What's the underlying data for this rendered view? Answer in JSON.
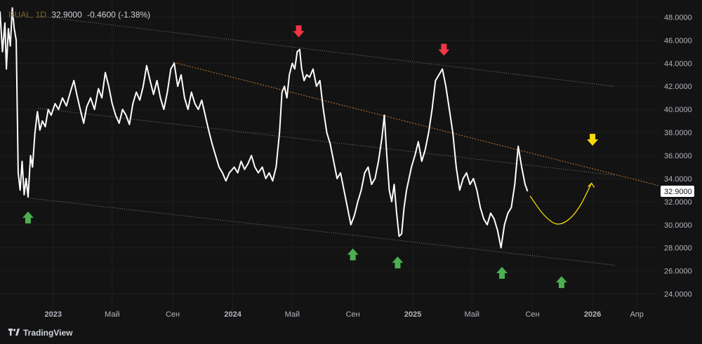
{
  "legend": {
    "symbol": "RUAL, 1D",
    "value": "32.9000",
    "change": "-0.4600 (-1.38%)"
  },
  "brand": {
    "logo_icon": "tradingview-logo-icon",
    "name": "TradingView"
  },
  "colors": {
    "background": "#131313",
    "price": "#ffffff",
    "up_arrow": "#4caf50",
    "down_arrow": "#f23645",
    "forecast": "#f5d90a",
    "trend": "#c97a2a",
    "channel": "#7a7a7a",
    "grid": "#1e1e1e",
    "axis_text": "#b2b5be"
  },
  "chart_data": {
    "type": "line",
    "ylim": [
      23,
      49
    ],
    "xlim": [
      "2022-09-15",
      "2026-05-15"
    ],
    "y_ticks": [
      "24.0000",
      "26.0000",
      "28.0000",
      "30.0000",
      "32.0000",
      "34.0000",
      "36.0000",
      "38.0000",
      "40.0000",
      "42.0000",
      "44.0000",
      "46.0000",
      "48.0000"
    ],
    "x_ticks": [
      {
        "label": "2023",
        "date": "2023-01-01"
      },
      {
        "label": "Май",
        "date": "2023-05-01"
      },
      {
        "label": "Сен",
        "date": "2023-09-01"
      },
      {
        "label": "2024",
        "date": "2024-01-01"
      },
      {
        "label": "Май",
        "date": "2024-05-01"
      },
      {
        "label": "Сен",
        "date": "2024-09-01"
      },
      {
        "label": "2025",
        "date": "2025-01-01"
      },
      {
        "label": "Май",
        "date": "2025-05-01"
      },
      {
        "label": "Сен",
        "date": "2025-09-01"
      },
      {
        "label": "2026",
        "date": "2026-01-01"
      },
      {
        "label": "Апр",
        "date": "2026-04-01"
      }
    ],
    "last_price_label": "32.9000",
    "series": [
      {
        "values": [
          [
            "2022-09-15",
            48.5
          ],
          [
            "2022-09-20",
            45.0
          ],
          [
            "2022-09-25",
            47.5
          ],
          [
            "2022-09-28",
            43.5
          ],
          [
            "2022-10-02",
            47.0
          ],
          [
            "2022-10-06",
            45.5
          ],
          [
            "2022-10-10",
            48.8
          ],
          [
            "2022-10-14",
            47.0
          ],
          [
            "2022-10-18",
            46.0
          ],
          [
            "2022-10-22",
            34.5
          ],
          [
            "2022-10-26",
            33.0
          ],
          [
            "2022-10-30",
            35.5
          ],
          [
            "2022-11-03",
            32.6
          ],
          [
            "2022-11-07",
            34.0
          ],
          [
            "2022-11-11",
            32.4
          ],
          [
            "2022-11-16",
            36.0
          ],
          [
            "2022-11-20",
            35.0
          ],
          [
            "2022-11-25",
            38.0
          ],
          [
            "2022-11-30",
            39.8
          ],
          [
            "2022-12-05",
            38.2
          ],
          [
            "2022-12-10",
            39.0
          ],
          [
            "2022-12-16",
            38.5
          ],
          [
            "2022-12-22",
            40.0
          ],
          [
            "2022-12-28",
            39.5
          ],
          [
            "2023-01-05",
            40.5
          ],
          [
            "2023-01-12",
            40.0
          ],
          [
            "2023-01-20",
            41.0
          ],
          [
            "2023-01-28",
            40.3
          ],
          [
            "2023-02-05",
            41.5
          ],
          [
            "2023-02-12",
            42.5
          ],
          [
            "2023-02-18",
            41.3
          ],
          [
            "2023-02-25",
            40.0
          ],
          [
            "2023-03-04",
            38.8
          ],
          [
            "2023-03-10",
            40.2
          ],
          [
            "2023-03-18",
            41.0
          ],
          [
            "2023-03-26",
            40.0
          ],
          [
            "2023-04-03",
            41.8
          ],
          [
            "2023-04-10",
            41.0
          ],
          [
            "2023-04-17",
            43.2
          ],
          [
            "2023-04-24",
            42.0
          ],
          [
            "2023-05-01",
            40.5
          ],
          [
            "2023-05-08",
            39.5
          ],
          [
            "2023-05-15",
            38.8
          ],
          [
            "2023-05-22",
            40.0
          ],
          [
            "2023-05-29",
            39.5
          ],
          [
            "2023-06-05",
            38.7
          ],
          [
            "2023-06-12",
            40.5
          ],
          [
            "2023-06-19",
            41.5
          ],
          [
            "2023-06-26",
            40.8
          ],
          [
            "2023-07-03",
            42.0
          ],
          [
            "2023-07-10",
            43.8
          ],
          [
            "2023-07-17",
            42.5
          ],
          [
            "2023-07-24",
            41.3
          ],
          [
            "2023-07-31",
            42.5
          ],
          [
            "2023-08-07",
            41.0
          ],
          [
            "2023-08-14",
            40.0
          ],
          [
            "2023-08-21",
            41.5
          ],
          [
            "2023-08-28",
            43.5
          ],
          [
            "2023-09-04",
            44.0
          ],
          [
            "2023-09-11",
            42.0
          ],
          [
            "2023-09-18",
            43.0
          ],
          [
            "2023-09-25",
            41.0
          ],
          [
            "2023-10-02",
            40.0
          ],
          [
            "2023-10-09",
            41.5
          ],
          [
            "2023-10-16",
            40.5
          ],
          [
            "2023-10-23",
            40.0
          ],
          [
            "2023-10-30",
            40.8
          ],
          [
            "2023-11-06",
            39.5
          ],
          [
            "2023-11-13",
            38.2
          ],
          [
            "2023-11-20",
            37.0
          ],
          [
            "2023-11-27",
            36.0
          ],
          [
            "2023-12-04",
            35.0
          ],
          [
            "2023-12-11",
            34.5
          ],
          [
            "2023-12-18",
            33.8
          ],
          [
            "2023-12-25",
            34.5
          ],
          [
            "2024-01-04",
            35.0
          ],
          [
            "2024-01-11",
            34.5
          ],
          [
            "2024-01-18",
            35.5
          ],
          [
            "2024-01-25",
            34.8
          ],
          [
            "2024-02-01",
            35.3
          ],
          [
            "2024-02-08",
            36.0
          ],
          [
            "2024-02-15",
            35.0
          ],
          [
            "2024-02-22",
            34.5
          ],
          [
            "2024-03-01",
            35.0
          ],
          [
            "2024-03-08",
            34.0
          ],
          [
            "2024-03-15",
            34.5
          ],
          [
            "2024-03-22",
            33.8
          ],
          [
            "2024-03-29",
            35.0
          ],
          [
            "2024-04-05",
            38.0
          ],
          [
            "2024-04-10",
            41.5
          ],
          [
            "2024-04-15",
            42.0
          ],
          [
            "2024-04-20",
            41.0
          ],
          [
            "2024-04-25",
            43.0
          ],
          [
            "2024-05-01",
            44.0
          ],
          [
            "2024-05-06",
            43.5
          ],
          [
            "2024-05-11",
            45.0
          ],
          [
            "2024-05-16",
            45.2
          ],
          [
            "2024-05-20",
            43.5
          ],
          [
            "2024-05-25",
            42.5
          ],
          [
            "2024-05-30",
            43.0
          ],
          [
            "2024-06-05",
            42.8
          ],
          [
            "2024-06-12",
            43.5
          ],
          [
            "2024-06-19",
            42.0
          ],
          [
            "2024-06-26",
            42.5
          ],
          [
            "2024-07-03",
            40.0
          ],
          [
            "2024-07-10",
            38.0
          ],
          [
            "2024-07-17",
            37.0
          ],
          [
            "2024-07-24",
            35.5
          ],
          [
            "2024-07-31",
            34.0
          ],
          [
            "2024-08-07",
            34.5
          ],
          [
            "2024-08-14",
            33.0
          ],
          [
            "2024-08-21",
            31.5
          ],
          [
            "2024-08-28",
            30.0
          ],
          [
            "2024-09-04",
            30.8
          ],
          [
            "2024-09-11",
            32.0
          ],
          [
            "2024-09-18",
            33.0
          ],
          [
            "2024-09-25",
            34.5
          ],
          [
            "2024-10-02",
            35.0
          ],
          [
            "2024-10-09",
            33.5
          ],
          [
            "2024-10-16",
            34.0
          ],
          [
            "2024-10-23",
            35.5
          ],
          [
            "2024-10-30",
            37.5
          ],
          [
            "2024-11-04",
            39.5
          ],
          [
            "2024-11-09",
            36.0
          ],
          [
            "2024-11-14",
            33.0
          ],
          [
            "2024-11-19",
            32.0
          ],
          [
            "2024-11-24",
            33.5
          ],
          [
            "2024-11-29",
            31.0
          ],
          [
            "2024-12-04",
            29.0
          ],
          [
            "2024-12-09",
            29.2
          ],
          [
            "2024-12-14",
            31.5
          ],
          [
            "2024-12-19",
            33.0
          ],
          [
            "2024-12-24",
            34.0
          ],
          [
            "2024-12-29",
            35.0
          ],
          [
            "2025-01-05",
            36.0
          ],
          [
            "2025-01-12",
            37.2
          ],
          [
            "2025-01-19",
            35.5
          ],
          [
            "2025-01-26",
            36.5
          ],
          [
            "2025-02-02",
            38.0
          ],
          [
            "2025-02-09",
            40.0
          ],
          [
            "2025-02-16",
            42.5
          ],
          [
            "2025-02-23",
            43.0
          ],
          [
            "2025-03-02",
            43.5
          ],
          [
            "2025-03-09",
            42.0
          ],
          [
            "2025-03-16",
            40.0
          ],
          [
            "2025-03-23",
            38.0
          ],
          [
            "2025-03-30",
            35.0
          ],
          [
            "2025-04-06",
            33.0
          ],
          [
            "2025-04-13",
            34.0
          ],
          [
            "2025-04-20",
            34.5
          ],
          [
            "2025-04-27",
            33.5
          ],
          [
            "2025-05-04",
            34.0
          ],
          [
            "2025-05-11",
            33.0
          ],
          [
            "2025-05-18",
            31.5
          ],
          [
            "2025-05-25",
            30.5
          ],
          [
            "2025-06-01",
            30.0
          ],
          [
            "2025-06-08",
            31.0
          ],
          [
            "2025-06-15",
            30.5
          ],
          [
            "2025-06-22",
            29.5
          ],
          [
            "2025-06-29",
            28.0
          ],
          [
            "2025-07-06",
            30.0
          ],
          [
            "2025-07-13",
            31.0
          ],
          [
            "2025-07-20",
            31.5
          ],
          [
            "2025-07-27",
            33.5
          ],
          [
            "2025-08-03",
            36.8
          ],
          [
            "2025-08-10",
            35.0
          ],
          [
            "2025-08-17",
            33.5
          ],
          [
            "2025-08-22",
            32.9
          ]
        ]
      }
    ],
    "annotations": {
      "down_arrows": [
        [
          "2024-05-14",
          46.8
        ],
        [
          "2025-03-05",
          45.2
        ]
      ],
      "up_arrows": [
        [
          "2022-11-11",
          30.6
        ],
        [
          "2024-09-01",
          27.4
        ],
        [
          "2024-12-01",
          26.7
        ],
        [
          "2025-07-01",
          25.8
        ],
        [
          "2025-10-30",
          25.0
        ]
      ],
      "yellow_down_arrow": [
        "2026-01-01",
        37.4
      ],
      "forecast_curve": [
        [
          "2025-08-27",
          32.5
        ],
        [
          "2025-09-25",
          30.7
        ],
        [
          "2025-10-25",
          29.8
        ],
        [
          "2025-11-30",
          31.0
        ],
        [
          "2025-12-30",
          33.6
        ]
      ],
      "trend_line": [
        [
          "2023-09-01",
          44.1
        ],
        [
          "2026-05-15",
          33.4
        ]
      ],
      "channel_upper": [
        [
          "2022-12-01",
          48.1
        ],
        [
          "2026-02-15",
          42.0
        ]
      ],
      "channel_middle": [
        [
          "2022-12-01",
          40.1
        ],
        [
          "2026-02-15",
          34.3
        ]
      ],
      "channel_lower": [
        [
          "2022-11-15",
          32.3
        ],
        [
          "2026-02-15",
          26.5
        ]
      ]
    }
  }
}
